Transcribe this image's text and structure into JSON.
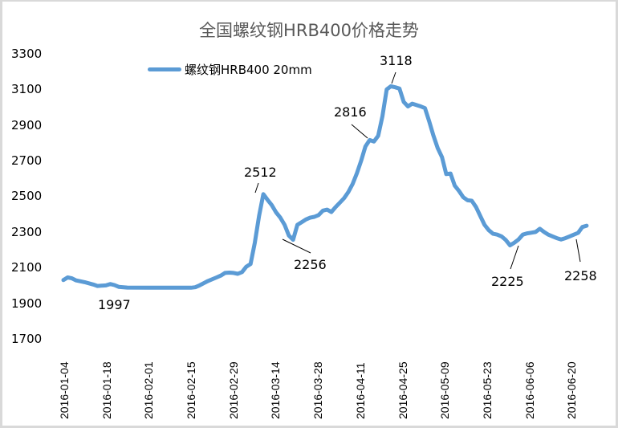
{
  "chart_data": {
    "type": "line",
    "title": "全国螺纹钢HRB400价格走势",
    "xlabel": "",
    "ylabel": "",
    "ylim": [
      1700,
      3300
    ],
    "yticks": [
      "3300",
      "3100",
      "2900",
      "2700",
      "2500",
      "2300",
      "2100",
      "1900",
      "1700"
    ],
    "xticks": [
      "2016-01-04",
      "2016-01-18",
      "2016-02-01",
      "2016-02-15",
      "2016-02-29",
      "2016-03-14",
      "2016-03-28",
      "2016-04-11",
      "2016-04-25",
      "2016-05-09",
      "2016-05-23",
      "2016-06-06",
      "2016-06-20"
    ],
    "grid": false,
    "legend_position": "top-left",
    "series": [
      {
        "name": "螺纹钢HRB400 20mm",
        "color": "#5b9bd5",
        "points": [
          [
            0,
            2030
          ],
          [
            1,
            2045
          ],
          [
            2,
            2040
          ],
          [
            3,
            2028
          ],
          [
            5,
            2018
          ],
          [
            7,
            2005
          ],
          [
            8,
            1997
          ],
          [
            10,
            2000
          ],
          [
            11,
            2008
          ],
          [
            12,
            2002
          ],
          [
            13,
            1992
          ],
          [
            15,
            1988
          ],
          [
            20,
            1987
          ],
          [
            25,
            1987
          ],
          [
            30,
            1987
          ],
          [
            31,
            1990
          ],
          [
            32,
            2000
          ],
          [
            34,
            2025
          ],
          [
            36,
            2045
          ],
          [
            37,
            2055
          ],
          [
            38,
            2070
          ],
          [
            39,
            2072
          ],
          [
            40,
            2070
          ],
          [
            41,
            2065
          ],
          [
            42,
            2075
          ],
          [
            43,
            2105
          ],
          [
            44,
            2120
          ],
          [
            45,
            2240
          ],
          [
            46,
            2390
          ],
          [
            47,
            2512
          ],
          [
            48,
            2480
          ],
          [
            49,
            2450
          ],
          [
            50,
            2410
          ],
          [
            51,
            2380
          ],
          [
            52,
            2340
          ],
          [
            53,
            2280
          ],
          [
            54,
            2256
          ],
          [
            55,
            2340
          ],
          [
            56,
            2355
          ],
          [
            57,
            2370
          ],
          [
            58,
            2380
          ],
          [
            59,
            2385
          ],
          [
            60,
            2395
          ],
          [
            61,
            2420
          ],
          [
            62,
            2425
          ],
          [
            63,
            2412
          ],
          [
            64,
            2440
          ],
          [
            65,
            2465
          ],
          [
            66,
            2490
          ],
          [
            67,
            2525
          ],
          [
            68,
            2570
          ],
          [
            69,
            2630
          ],
          [
            70,
            2700
          ],
          [
            71,
            2780
          ],
          [
            72,
            2816
          ],
          [
            73,
            2808
          ],
          [
            74,
            2840
          ],
          [
            75,
            2950
          ],
          [
            76,
            3100
          ],
          [
            77,
            3118
          ],
          [
            78,
            3112
          ],
          [
            79,
            3105
          ],
          [
            80,
            3030
          ],
          [
            81,
            3005
          ],
          [
            82,
            3020
          ],
          [
            84,
            3005
          ],
          [
            85,
            2995
          ],
          [
            86,
            2920
          ],
          [
            87,
            2840
          ],
          [
            88,
            2770
          ],
          [
            89,
            2720
          ],
          [
            90,
            2625
          ],
          [
            91,
            2628
          ],
          [
            92,
            2560
          ],
          [
            93,
            2530
          ],
          [
            94,
            2495
          ],
          [
            95,
            2478
          ],
          [
            96,
            2475
          ],
          [
            97,
            2440
          ],
          [
            98,
            2390
          ],
          [
            99,
            2340
          ],
          [
            100,
            2310
          ],
          [
            101,
            2290
          ],
          [
            102,
            2285
          ],
          [
            103,
            2275
          ],
          [
            104,
            2255
          ],
          [
            105,
            2225
          ],
          [
            106,
            2240
          ],
          [
            107,
            2258
          ],
          [
            108,
            2285
          ],
          [
            109,
            2292
          ],
          [
            110,
            2296
          ],
          [
            111,
            2300
          ],
          [
            112,
            2318
          ],
          [
            113,
            2300
          ],
          [
            114,
            2285
          ],
          [
            115,
            2275
          ],
          [
            116,
            2265
          ],
          [
            117,
            2258
          ],
          [
            118,
            2265
          ],
          [
            119,
            2275
          ],
          [
            120,
            2285
          ],
          [
            121,
            2295
          ],
          [
            122,
            2328
          ],
          [
            123,
            2335
          ]
        ],
        "annotations": [
          {
            "index": 8,
            "value": 1997,
            "label": "1997"
          },
          {
            "index": 47,
            "value": 2512,
            "label": "2512"
          },
          {
            "index": 54,
            "value": 2256,
            "label": "2256"
          },
          {
            "index": 72,
            "value": 2816,
            "label": "2816"
          },
          {
            "index": 77,
            "value": 3118,
            "label": "3118"
          },
          {
            "index": 105,
            "value": 2225,
            "label": "2225"
          },
          {
            "index": 117,
            "value": 2258,
            "label": "2258"
          }
        ]
      }
    ]
  },
  "legend": {
    "label": "螺纹钢HRB400 20mm"
  },
  "labels": {
    "l1997": "1997",
    "l2512": "2512",
    "l2256": "2256",
    "l2816": "2816",
    "l3118": "3118",
    "l2225": "2225",
    "l2258": "2258"
  }
}
